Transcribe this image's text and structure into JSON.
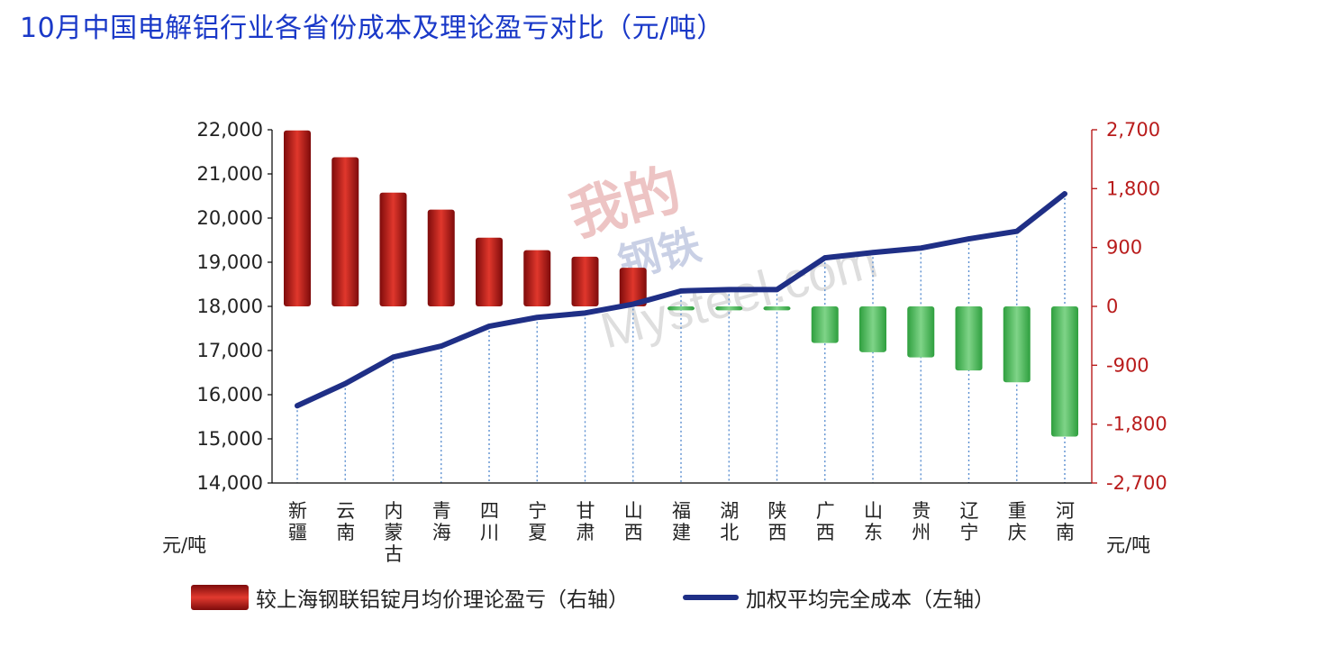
{
  "title": "10月中国电解铝行业各省份成本及理论盈亏对比（元/吨）",
  "watermark": {
    "line1": "我的",
    "line2": "钢铁",
    "line3": "Mysteel.com"
  },
  "colors": {
    "title": "#1a39c8",
    "profit_bar": "#c62828",
    "loss_bar": "#4caf50",
    "cost_line": "#1f2f86",
    "right_axis": "#b91c1c"
  },
  "chart_data": {
    "type": "bar",
    "categories": [
      "新疆",
      "云南",
      "内蒙古",
      "青海",
      "四川",
      "宁夏",
      "甘肃",
      "山西",
      "福建",
      "湖北",
      "陕西",
      "广西",
      "山东",
      "贵州",
      "辽宁",
      "重庆",
      "河南"
    ],
    "series": [
      {
        "name": "较上海钢联铝锭月均价理论盈亏（右轴）",
        "type": "bar",
        "axis": "right",
        "values": [
          2690,
          2280,
          1740,
          1480,
          1050,
          860,
          760,
          590,
          -60,
          -60,
          -60,
          -560,
          -700,
          -780,
          -980,
          -1160,
          -1990
        ]
      },
      {
        "name": "加权平均完全成本（左轴）",
        "type": "line",
        "axis": "left",
        "values": [
          15750,
          16250,
          16850,
          17100,
          17550,
          17750,
          17850,
          18050,
          18350,
          18380,
          18380,
          19100,
          19220,
          19320,
          19530,
          19700,
          20550
        ]
      }
    ],
    "left_axis": {
      "ticks": [
        "22,000",
        "21,000",
        "20,000",
        "19,000",
        "18,000",
        "17,000",
        "16,000",
        "15,000",
        "14,000"
      ],
      "ylim": [
        14000,
        22000
      ],
      "unit": "元/吨"
    },
    "right_axis": {
      "ticks": [
        "2,700",
        "1,800",
        "900",
        "0",
        "-900",
        "-1,800",
        "-2,700"
      ],
      "ylim": [
        -2700,
        2700
      ],
      "unit": "元/吨"
    },
    "legend": {
      "position": "bottom",
      "bar_label": "较上海钢联铝锭月均价理论盈亏（右轴）",
      "line_label": "加权平均完全成本（左轴）"
    }
  }
}
